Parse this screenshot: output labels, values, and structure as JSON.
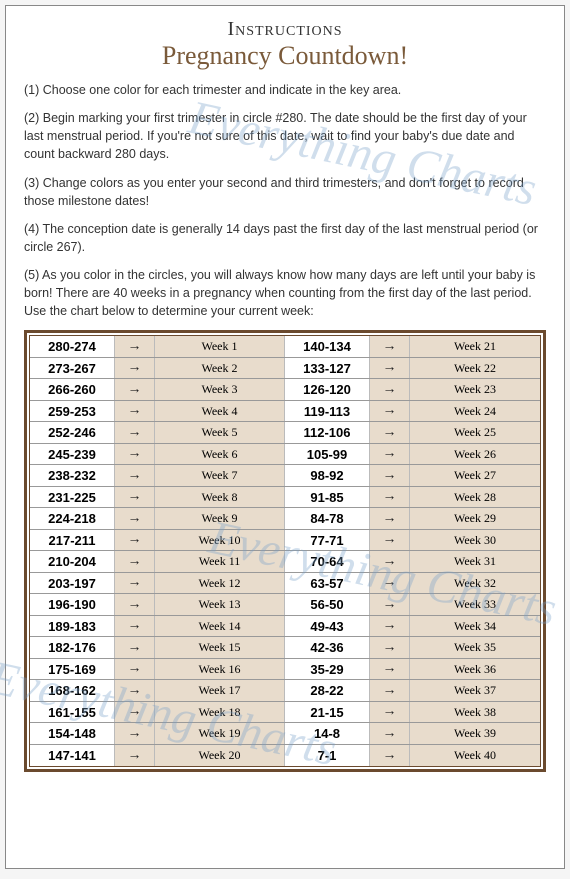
{
  "header": {
    "title1": "Instructions",
    "title2": "Pregnancy Countdown!"
  },
  "instructions": [
    "(1) Choose one color for each trimester and indicate in the key area.",
    "(2) Begin marking your first trimester in circle #280.  The date should be the first day of your last menstrual period.  If you're not sure of this date, wait to find your baby's due date and count backward 280 days.",
    "(3) Change colors as you enter your second and third trimesters, and don't forget to record those milestone dates!",
    "(4) The conception date is generally 14 days past the first day of the last menstrual period (or circle 267).",
    "(5) As you color in the circles, you will always know how many days are left until your baby is born!  There are 40 weeks in a pregnancy when counting from the first day of the last period.  Use the chart below to determine your current week:"
  ],
  "watermark": "Everything Charts",
  "table": {
    "cell_bg": "#e8dccc",
    "border_color": "#6b4a2e",
    "left": [
      {
        "range": "280-274",
        "week": "Week 1"
      },
      {
        "range": "273-267",
        "week": "Week 2"
      },
      {
        "range": "266-260",
        "week": "Week 3"
      },
      {
        "range": "259-253",
        "week": "Week 4"
      },
      {
        "range": "252-246",
        "week": "Week 5"
      },
      {
        "range": "245-239",
        "week": "Week 6"
      },
      {
        "range": "238-232",
        "week": "Week 7"
      },
      {
        "range": "231-225",
        "week": "Week 8"
      },
      {
        "range": "224-218",
        "week": "Week 9"
      },
      {
        "range": "217-211",
        "week": "Week 10"
      },
      {
        "range": "210-204",
        "week": "Week 11"
      },
      {
        "range": "203-197",
        "week": "Week 12"
      },
      {
        "range": "196-190",
        "week": "Week 13"
      },
      {
        "range": "189-183",
        "week": "Week 14"
      },
      {
        "range": "182-176",
        "week": "Week 15"
      },
      {
        "range": "175-169",
        "week": "Week 16"
      },
      {
        "range": "168-162",
        "week": "Week 17"
      },
      {
        "range": "161-155",
        "week": "Week 18"
      },
      {
        "range": "154-148",
        "week": "Week 19"
      },
      {
        "range": "147-141",
        "week": "Week 20"
      }
    ],
    "right": [
      {
        "range": "140-134",
        "week": "Week 21"
      },
      {
        "range": "133-127",
        "week": "Week 22"
      },
      {
        "range": "126-120",
        "week": "Week 23"
      },
      {
        "range": "119-113",
        "week": "Week 24"
      },
      {
        "range": "112-106",
        "week": "Week 25"
      },
      {
        "range": "105-99",
        "week": "Week 26"
      },
      {
        "range": "98-92",
        "week": "Week 27"
      },
      {
        "range": "91-85",
        "week": "Week 28"
      },
      {
        "range": "84-78",
        "week": "Week 29"
      },
      {
        "range": "77-71",
        "week": "Week 30"
      },
      {
        "range": "70-64",
        "week": "Week 31"
      },
      {
        "range": "63-57",
        "week": "Week 32"
      },
      {
        "range": "56-50",
        "week": "Week 33"
      },
      {
        "range": "49-43",
        "week": "Week 34"
      },
      {
        "range": "42-36",
        "week": "Week 35"
      },
      {
        "range": "35-29",
        "week": "Week 36"
      },
      {
        "range": "28-22",
        "week": "Week 37"
      },
      {
        "range": "21-15",
        "week": "Week 38"
      },
      {
        "range": "14-8",
        "week": "Week 39"
      },
      {
        "range": "7-1",
        "week": "Week 40"
      }
    ]
  }
}
